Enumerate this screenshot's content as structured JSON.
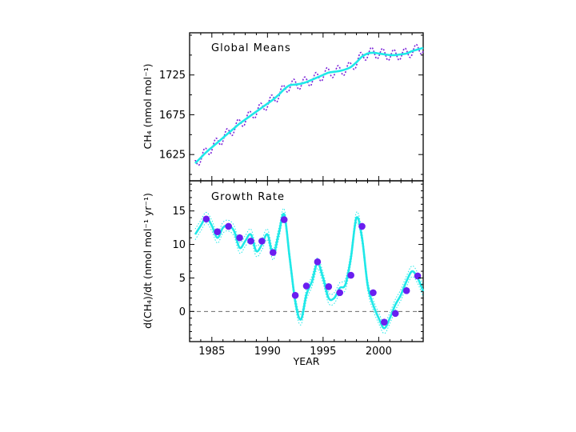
{
  "chart_data": [
    {
      "type": "line",
      "title": "Global Means",
      "ylabel": "CH₄ (nmol mol⁻¹)",
      "xlim": [
        1983,
        2004
      ],
      "ylim": [
        1592,
        1778
      ],
      "yticks": [
        1625,
        1675,
        1725
      ],
      "grid": false,
      "colors": {
        "trend": "#1fe8e8",
        "monthly": "#7a22d8"
      },
      "series": [
        {
          "role": "deseasonalized trend",
          "x": [
            1983.5,
            1984,
            1984.5,
            1985,
            1985.5,
            1986,
            1986.5,
            1987,
            1987.5,
            1988,
            1988.5,
            1989,
            1989.5,
            1990,
            1990.5,
            1991,
            1991.5,
            1992,
            1992.5,
            1993,
            1993.5,
            1994,
            1994.5,
            1995,
            1995.5,
            1996,
            1996.5,
            1997,
            1997.5,
            1998,
            1998.5,
            1999,
            1999.5,
            2000,
            2000.5,
            2001,
            2001.5,
            2002,
            2002.5,
            2003,
            2003.5,
            2004
          ],
          "values": [
            1614,
            1621,
            1628,
            1634,
            1640,
            1646,
            1652,
            1658,
            1664,
            1669,
            1674,
            1679,
            1684,
            1689,
            1694,
            1700,
            1707,
            1712,
            1713,
            1714,
            1716,
            1719,
            1722,
            1725,
            1728,
            1729,
            1730,
            1732,
            1735,
            1741,
            1748,
            1752,
            1753,
            1752,
            1751,
            1750,
            1750,
            1751,
            1752,
            1755,
            1757,
            1759
          ]
        },
        {
          "role": "monthly means",
          "seasonal_amplitude": 7
        }
      ]
    },
    {
      "type": "line",
      "title": "Growth Rate",
      "ylabel": "d(CH₄)/dt (nmol mol⁻¹ yr⁻¹)",
      "xlabel": "YEAR",
      "xlim": [
        1983,
        2004
      ],
      "ylim": [
        -4.5,
        19.5
      ],
      "xticks": [
        1985,
        1990,
        1995,
        2000
      ],
      "yticks": [
        0,
        5,
        10,
        15
      ],
      "grid": false,
      "reference_line": 0,
      "colors": {
        "curve": "#1fe8e8",
        "points": "#6a1ef0",
        "reference_line": "#555555"
      },
      "series": [
        {
          "role": "instantaneous growth rate",
          "x": [
            1983.5,
            1984,
            1984.5,
            1985,
            1985.5,
            1986,
            1986.5,
            1987,
            1987.5,
            1988,
            1988.5,
            1989,
            1989.5,
            1990,
            1990.5,
            1991,
            1991.5,
            1992,
            1992.5,
            1993,
            1993.5,
            1994,
            1994.5,
            1995,
            1995.5,
            1996,
            1996.5,
            1997,
            1997.5,
            1998,
            1998.5,
            1999,
            1999.5,
            2000,
            2000.5,
            2001,
            2001.5,
            2002,
            2002.5,
            2003,
            2003.5,
            2004
          ],
          "values": [
            11.5,
            12.8,
            14.0,
            12.8,
            11.0,
            12.5,
            12.8,
            12.0,
            9.5,
            10.5,
            11.5,
            9.0,
            10.0,
            11.5,
            8.5,
            11.5,
            14.5,
            8.0,
            1.5,
            -1.2,
            2.5,
            4.5,
            7.2,
            5.0,
            2.0,
            2.0,
            3.5,
            4.0,
            8.0,
            14.0,
            11.0,
            4.0,
            1.0,
            -1.0,
            -2.5,
            -1.0,
            1.0,
            2.5,
            4.5,
            6.0,
            5.0,
            3.0
          ]
        },
        {
          "role": "annual means",
          "x": [
            1984.5,
            1985.5,
            1986.5,
            1987.5,
            1988.5,
            1989.5,
            1990.5,
            1991.5,
            1992.5,
            1993.5,
            1994.5,
            1995.5,
            1996.5,
            1997.5,
            1998.5,
            1999.5,
            2000.5,
            2001.5,
            2002.5,
            2003.5
          ],
          "values": [
            13.8,
            11.9,
            12.7,
            11.0,
            10.5,
            10.5,
            8.8,
            13.7,
            2.4,
            3.8,
            7.4,
            3.7,
            2.8,
            5.4,
            12.7,
            2.8,
            -1.6,
            -0.3,
            3.1,
            5.3
          ]
        }
      ]
    }
  ]
}
